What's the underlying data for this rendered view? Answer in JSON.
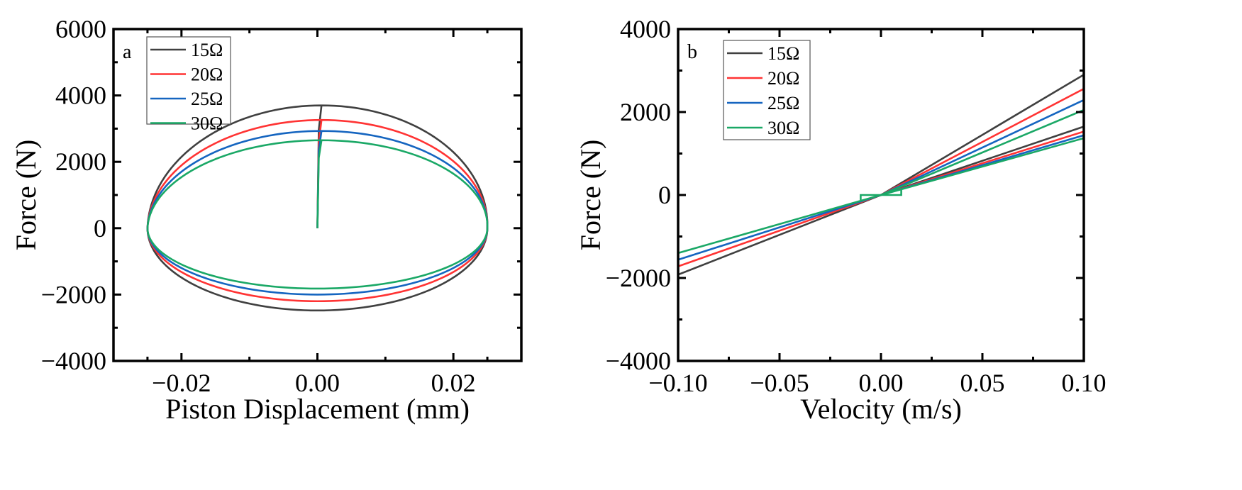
{
  "chart_data": [
    {
      "type": "line",
      "panel_label": "a",
      "xlabel": "Piston Displacement (mm)",
      "ylabel": "Force (N)",
      "xlim": [
        -0.03,
        0.03
      ],
      "ylim": [
        -4000,
        6000
      ],
      "xticks": [
        -0.02,
        0.0,
        0.02
      ],
      "xtick_labels": [
        "−0.02",
        "0.00",
        "0.02"
      ],
      "yticks": [
        -4000,
        -2000,
        0,
        2000,
        4000,
        6000
      ],
      "ytick_labels": [
        "−4000",
        "−2000",
        "0",
        "2000",
        "4000",
        "6000"
      ],
      "grid": false,
      "legend_position": "top-left",
      "amplitude": 0.025,
      "series": [
        {
          "name": "15Ω",
          "color": "#404040",
          "f_max": 3700,
          "f_min": -2480
        },
        {
          "name": "20Ω",
          "color": "#ff3333",
          "f_max": 3260,
          "f_min": -2200
        },
        {
          "name": "25Ω",
          "color": "#1565c0",
          "f_max": 2930,
          "f_min": -2000
        },
        {
          "name": "30Ω",
          "color": "#1aa866",
          "f_max": 2650,
          "f_min": -1820
        }
      ]
    },
    {
      "type": "line",
      "panel_label": "b",
      "xlabel": "Velocity (m/s)",
      "ylabel": "Force (N)",
      "xlim": [
        -0.1,
        0.1
      ],
      "ylim": [
        -4000,
        4000
      ],
      "xticks": [
        -0.1,
        -0.05,
        0.0,
        0.05,
        0.1
      ],
      "xtick_labels": [
        "−0.10",
        "−0.05",
        "0.00",
        "0.05",
        "0.10"
      ],
      "yticks": [
        -4000,
        -2000,
        0,
        2000,
        4000
      ],
      "ytick_labels": [
        "−4000",
        "−2000",
        "0",
        "2000",
        "4000"
      ],
      "grid": false,
      "legend_position": "top-left",
      "series": [
        {
          "name": "15Ω",
          "color": "#404040",
          "upper_end": 2900,
          "lower_end": 1650,
          "neg_end": -1920
        },
        {
          "name": "20Ω",
          "color": "#ff3333",
          "upper_end": 2560,
          "lower_end": 1530,
          "neg_end": -1720
        },
        {
          "name": "25Ω",
          "color": "#1565c0",
          "upper_end": 2290,
          "lower_end": 1440,
          "neg_end": -1560
        },
        {
          "name": "30Ω",
          "color": "#1aa866",
          "upper_end": 2050,
          "lower_end": 1370,
          "neg_end": -1400
        }
      ],
      "hysteresis_box": {
        "x": [
          -0.01,
          0.01
        ],
        "y": [
          -150,
          150
        ],
        "color": "#1aa866"
      }
    }
  ]
}
